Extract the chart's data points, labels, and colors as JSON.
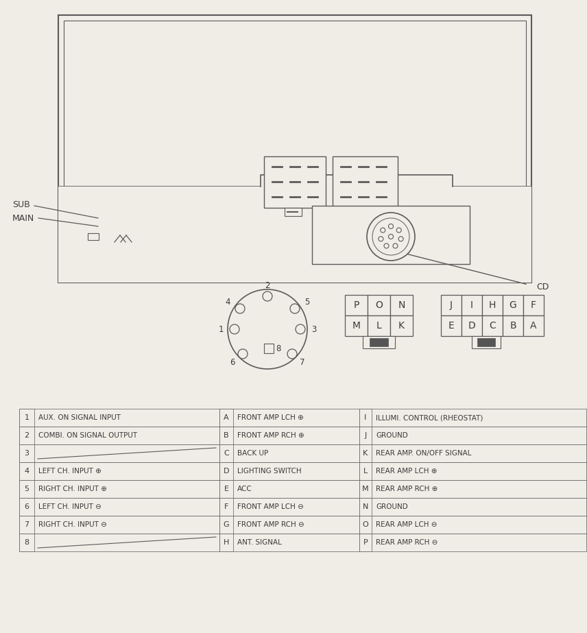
{
  "bg_color": "#f0ede6",
  "line_color": "#5a5a5a",
  "text_color": "#3a3a3a",
  "unit_rows": [
    {
      "num": "1",
      "desc": "AUX. ON SIGNAL INPUT"
    },
    {
      "num": "2",
      "desc": "COMBI. ON SIGNAL OUTPUT"
    },
    {
      "num": "3",
      "desc": ""
    },
    {
      "num": "4",
      "desc": "LEFT CH. INPUT ⊕"
    },
    {
      "num": "5",
      "desc": "RIGHT CH. INPUT ⊕"
    },
    {
      "num": "6",
      "desc": "LEFT CH. INPUT ⊖"
    },
    {
      "num": "7",
      "desc": "RIGHT CH. INPUT ⊖"
    },
    {
      "num": "8",
      "desc": ""
    }
  ],
  "connector_rows": [
    {
      "letter": "A",
      "desc": "FRONT AMP LCH ⊕"
    },
    {
      "letter": "B",
      "desc": "FRONT AMP RCH ⊕"
    },
    {
      "letter": "C",
      "desc": "BACK UP"
    },
    {
      "letter": "D",
      "desc": "LIGHTING SWITCH"
    },
    {
      "letter": "E",
      "desc": "ACC"
    },
    {
      "letter": "F",
      "desc": "FRONT AMP LCH ⊖"
    },
    {
      "letter": "G",
      "desc": "FRONT AMP RCH ⊖"
    },
    {
      "letter": "H",
      "desc": "ANT. SIGNAL"
    }
  ],
  "signal_rows": [
    {
      "letter": "I",
      "desc": "ILLUMI. CONTROL (RHEOSTAT)"
    },
    {
      "letter": "J",
      "desc": "GROUND"
    },
    {
      "letter": "K",
      "desc": "REAR AMP. ON/OFF SIGNAL"
    },
    {
      "letter": "L",
      "desc": "REAR AMP LCH ⊕"
    },
    {
      "letter": "M",
      "desc": "REAR AMP RCH ⊕"
    },
    {
      "letter": "N",
      "desc": "GROUND"
    },
    {
      "letter": "O",
      "desc": "REAR AMP LCH ⊖"
    },
    {
      "letter": "P",
      "desc": "REAR AMP RCH ⊖"
    }
  ],
  "cg1_top": [
    "P",
    "O",
    "N"
  ],
  "cg1_bot": [
    "M",
    "L",
    "K"
  ],
  "cg2_top": [
    "J",
    "I",
    "H",
    "G",
    "F"
  ],
  "cg2_bot": [
    "E",
    "D",
    "C",
    "B",
    "A"
  ]
}
